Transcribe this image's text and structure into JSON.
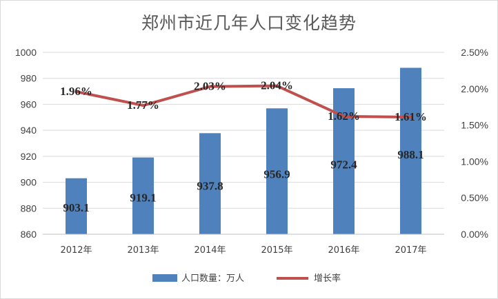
{
  "chart_data": {
    "type": "bar",
    "title": "郑州市近几年人口变化趋势",
    "categories": [
      "2012年",
      "2013年",
      "2014年",
      "2015年",
      "2016年",
      "2017年"
    ],
    "series": [
      {
        "name": "人口数量：万人",
        "type": "bar",
        "axis": "left",
        "color": "#4f81bd",
        "values": [
          903.1,
          919.1,
          937.8,
          956.9,
          972.4,
          988.1
        ],
        "labels": [
          "903.1",
          "919.1",
          "937.8",
          "956.9",
          "972.4",
          "988.1"
        ]
      },
      {
        "name": "增长率",
        "type": "line",
        "axis": "right",
        "color": "#c0504d",
        "values": [
          1.96,
          1.77,
          2.03,
          2.04,
          1.62,
          1.61
        ],
        "labels": [
          "1.96%",
          "1.77%",
          "2.03%",
          "2.04%",
          "1.62%",
          "1.61%"
        ]
      }
    ],
    "y_left": {
      "range": [
        860,
        1000
      ],
      "ticks": [
        860,
        880,
        900,
        920,
        940,
        960,
        980,
        1000
      ],
      "tick_labels": [
        "860",
        "880",
        "900",
        "920",
        "940",
        "960",
        "980",
        "1000"
      ]
    },
    "y_right": {
      "range": [
        0,
        2.5
      ],
      "ticks": [
        0,
        0.5,
        1,
        1.5,
        2,
        2.5
      ],
      "tick_labels": [
        "0.00%",
        "0.50%",
        "1.00%",
        "1.50%",
        "2.00%",
        "2.50%"
      ]
    },
    "grid": true,
    "legend_position": "bottom"
  }
}
